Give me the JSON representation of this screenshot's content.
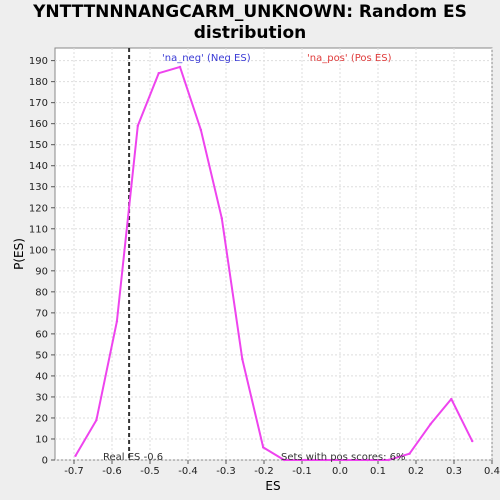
{
  "chart_data": {
    "type": "line",
    "title": "YNTTTNNNANGCARM_UNKNOWN: Random ES distribution",
    "xlabel": "ES",
    "ylabel": "P(ES)",
    "xlim": [
      -0.75,
      0.4
    ],
    "ylim": [
      0,
      196
    ],
    "x_ticks": [
      "-0.7",
      "-0.6",
      "-0.5",
      "-0.4",
      "-0.3",
      "-0.2",
      "-0.1",
      "0.0",
      "0.1",
      "0.2",
      "0.3",
      "0.4"
    ],
    "x_tick_values": [
      -0.7,
      -0.6,
      -0.5,
      -0.4,
      -0.3,
      -0.2,
      -0.1,
      0.0,
      0.1,
      0.2,
      0.3,
      0.4
    ],
    "y_ticks": [
      0,
      10,
      20,
      30,
      40,
      50,
      60,
      70,
      80,
      90,
      100,
      110,
      120,
      130,
      140,
      150,
      160,
      170,
      180,
      190
    ],
    "grid": true,
    "series": [
      {
        "color": "#ee44ee",
        "x": [
          -0.696,
          -0.641,
          -0.587,
          -0.532,
          -0.477,
          -0.421,
          -0.366,
          -0.311,
          -0.257,
          -0.202,
          -0.147,
          -0.092,
          -0.037,
          0.018,
          0.073,
          0.128,
          0.183,
          0.238,
          0.293,
          0.348
        ],
        "y": [
          2,
          19,
          66,
          159,
          184,
          187,
          157,
          115,
          48,
          6,
          0,
          0,
          0,
          0,
          0,
          0,
          3,
          17,
          29,
          9
        ]
      }
    ],
    "real_es": -0.555,
    "real_es_label": "Real ES -0.6",
    "legend": [
      {
        "label": "'na_neg' (Neg ES)",
        "color": "#3b3bd6"
      },
      {
        "label": "'na_pos' (Pos ES)",
        "color": "#e03c3c"
      }
    ],
    "annotation": "Sets with pos scores: 6%"
  }
}
